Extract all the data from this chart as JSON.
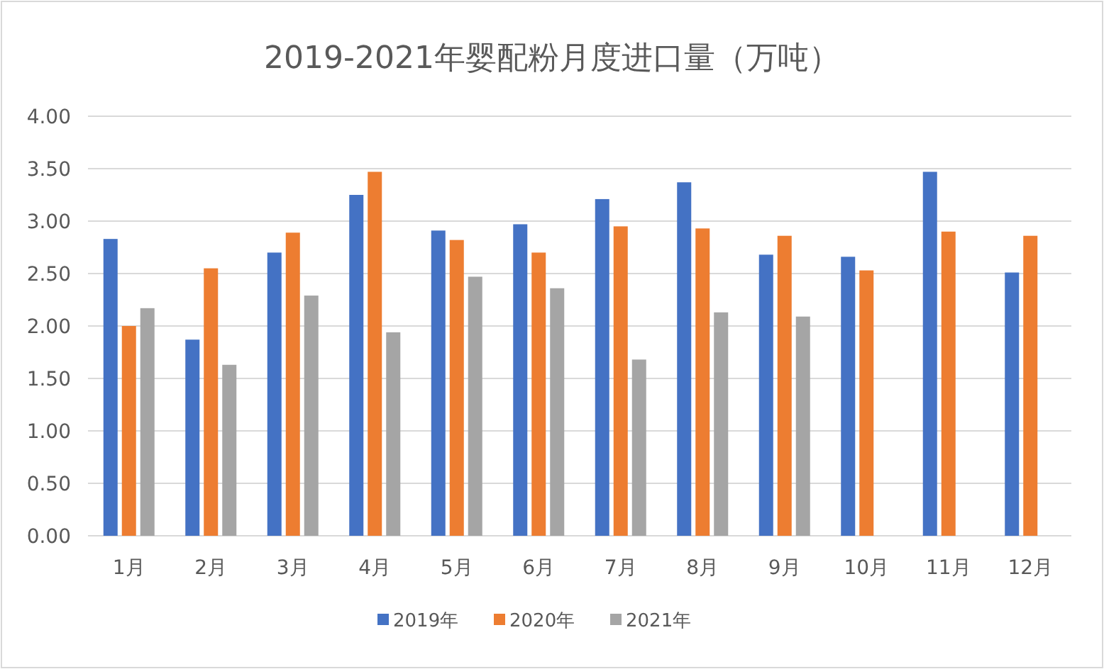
{
  "chart_data": {
    "type": "bar",
    "title": "2019-2021年婴配粉月度进口量（万吨）",
    "categories": [
      "1月",
      "2月",
      "3月",
      "4月",
      "5月",
      "6月",
      "7月",
      "8月",
      "9月",
      "10月",
      "11月",
      "12月"
    ],
    "series": [
      {
        "name": "2019年",
        "color": "#4472c4",
        "values": [
          2.83,
          1.87,
          2.7,
          3.25,
          2.91,
          2.97,
          3.21,
          3.37,
          2.68,
          2.66,
          3.47,
          2.51
        ]
      },
      {
        "name": "2020年",
        "color": "#ed7d31",
        "values": [
          2.0,
          2.55,
          2.89,
          3.47,
          2.82,
          2.7,
          2.95,
          2.93,
          2.86,
          2.53,
          2.9,
          2.86
        ]
      },
      {
        "name": "2021年",
        "color": "#a5a5a5",
        "values": [
          2.17,
          1.63,
          2.29,
          1.94,
          2.47,
          2.36,
          1.68,
          2.13,
          2.09,
          null,
          null,
          null
        ]
      }
    ],
    "ylim": [
      0,
      4
    ],
    "yticks": [
      {
        "value": 0,
        "label": "0.00"
      },
      {
        "value": 0.5,
        "label": "0.50"
      },
      {
        "value": 1,
        "label": "1.00"
      },
      {
        "value": 1.5,
        "label": "1.50"
      },
      {
        "value": 2,
        "label": "2.00"
      },
      {
        "value": 2.5,
        "label": "2.50"
      },
      {
        "value": 3,
        "label": "3.00"
      },
      {
        "value": 3.5,
        "label": "3.50"
      },
      {
        "value": 4,
        "label": "4.00"
      }
    ],
    "grid": "y",
    "legend": "bottom"
  }
}
